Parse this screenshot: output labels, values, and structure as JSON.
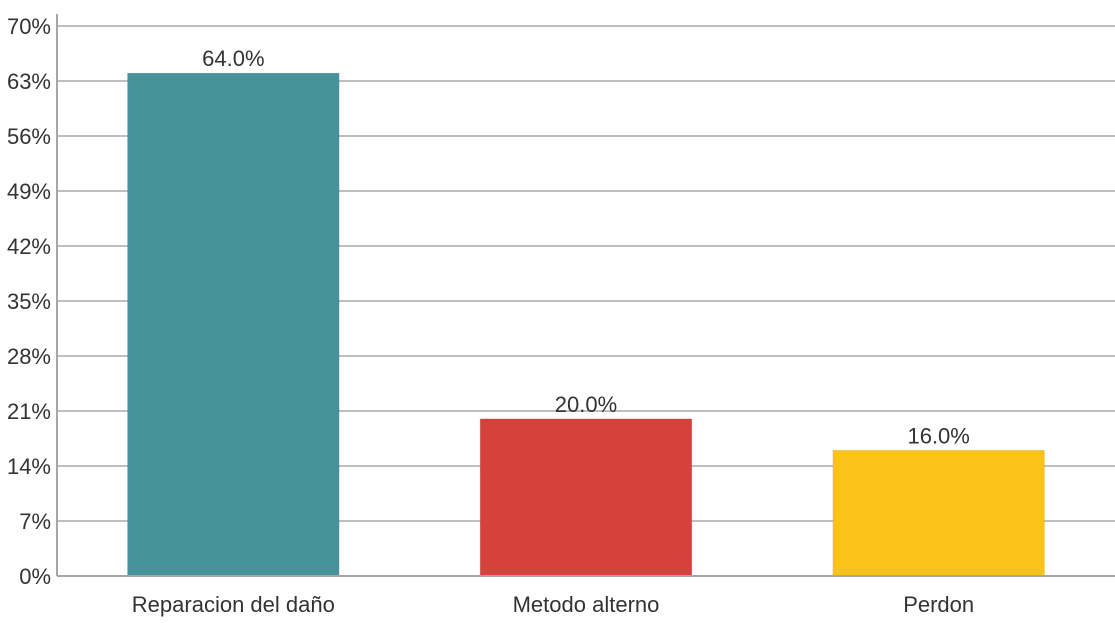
{
  "chart_data": {
    "type": "bar",
    "title": "",
    "xlabel": "",
    "ylabel": "",
    "categories": [
      "Reparacion del daño",
      "Metodo alterno",
      "Perdon"
    ],
    "values": [
      64.0,
      20.0,
      16.0
    ],
    "value_labels": [
      "64.0%",
      "20.0%",
      "16.0%"
    ],
    "colors": [
      "#47939c",
      "#d4423b",
      "#fbc21a"
    ],
    "ylim": [
      0,
      70
    ],
    "yticks": [
      0,
      7,
      14,
      21,
      28,
      35,
      42,
      49,
      56,
      63,
      70
    ],
    "ytick_labels": [
      "0%",
      "7%",
      "14%",
      "21%",
      "28%",
      "35%",
      "42%",
      "49%",
      "56%",
      "63%",
      "70%"
    ],
    "grid": true,
    "legend": "none"
  }
}
